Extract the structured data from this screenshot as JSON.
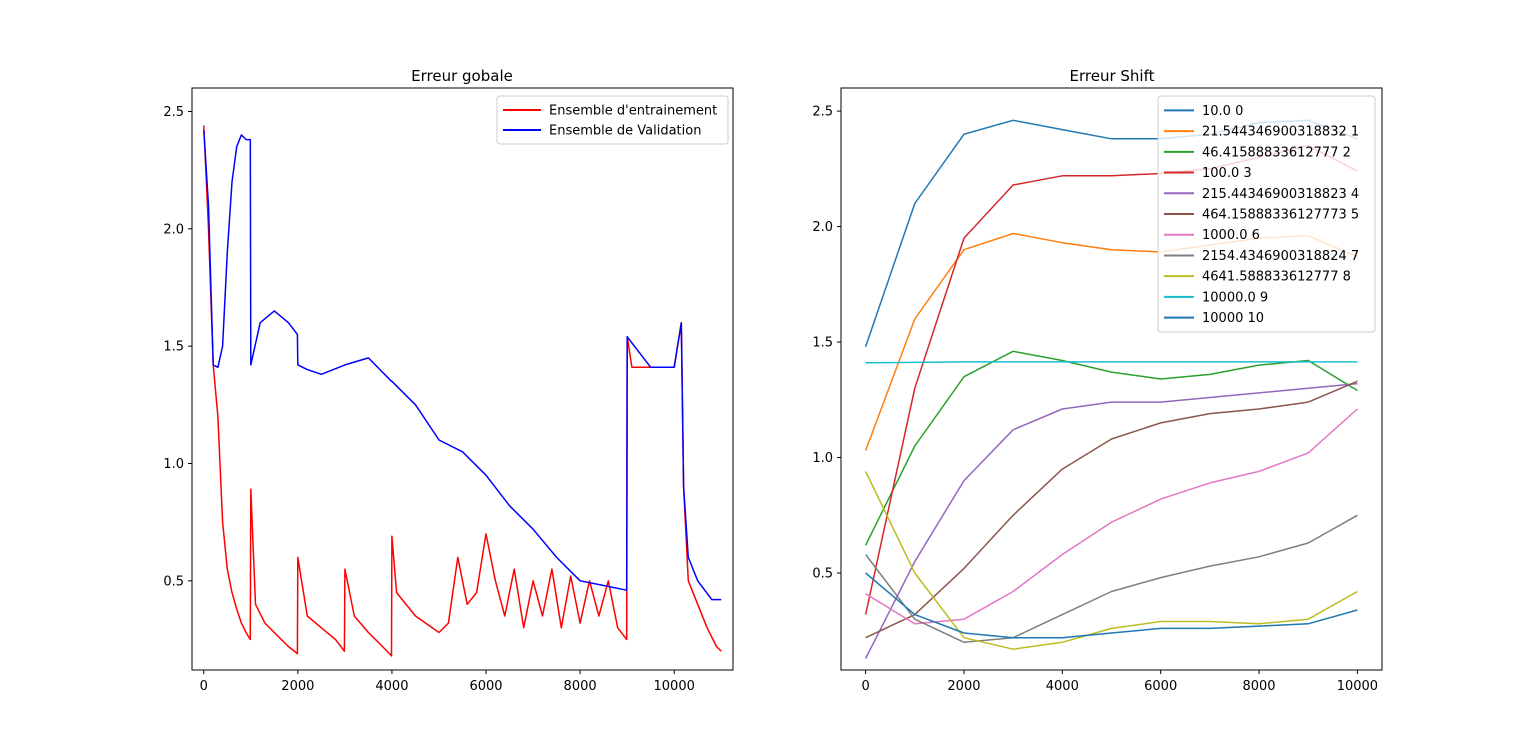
{
  "chart_data": [
    {
      "type": "line",
      "title": "Erreur gobale",
      "xlabel": "",
      "ylabel": "",
      "xlim": [
        -250,
        11250
      ],
      "ylim": [
        0.12,
        2.6
      ],
      "xticks": [
        0,
        2000,
        4000,
        6000,
        8000,
        10000
      ],
      "yticks": [
        0.5,
        1.0,
        1.5,
        2.0,
        2.5
      ],
      "xtick_labels": [
        "0",
        "2000",
        "4000",
        "6000",
        "8000",
        "10000"
      ],
      "ytick_labels": [
        "0.5",
        "1.0",
        "1.5",
        "2.0",
        "2.5"
      ],
      "grid": false,
      "legend_position": "top-right",
      "series": [
        {
          "name": "Ensemble d'entrainement",
          "color": "#ff0000",
          "x": [
            0,
            100,
            200,
            300,
            400,
            500,
            600,
            700,
            800,
            900,
            990,
            1000,
            1100,
            1300,
            1500,
            1800,
            1990,
            2000,
            2200,
            2500,
            2800,
            2990,
            3000,
            3200,
            3500,
            3800,
            3990,
            4000,
            4100,
            4500,
            5000,
            5200,
            5400,
            5600,
            5800,
            6000,
            6200,
            6400,
            6600,
            6800,
            7000,
            7200,
            7400,
            7600,
            7800,
            8000,
            8200,
            8400,
            8600,
            8800,
            8990,
            9000,
            9100,
            9500,
            10000,
            10150,
            10200,
            10300,
            10500,
            10700,
            10900,
            11000
          ],
          "y": [
            2.44,
            2.0,
            1.42,
            1.2,
            0.75,
            0.55,
            0.45,
            0.38,
            0.32,
            0.28,
            0.25,
            0.89,
            0.4,
            0.32,
            0.28,
            0.22,
            0.19,
            0.6,
            0.35,
            0.3,
            0.25,
            0.2,
            0.55,
            0.35,
            0.28,
            0.22,
            0.18,
            0.69,
            0.45,
            0.35,
            0.28,
            0.32,
            0.6,
            0.4,
            0.45,
            0.7,
            0.5,
            0.35,
            0.55,
            0.3,
            0.5,
            0.35,
            0.55,
            0.3,
            0.52,
            0.32,
            0.5,
            0.35,
            0.5,
            0.3,
            0.25,
            1.54,
            1.41,
            1.41,
            1.41,
            1.6,
            0.9,
            0.5,
            0.4,
            0.3,
            0.22,
            0.2
          ]
        },
        {
          "name": "Ensemble de Validation",
          "color": "#0000ff",
          "x": [
            0,
            100,
            200,
            300,
            400,
            500,
            600,
            700,
            800,
            900,
            990,
            1000,
            1200,
            1500,
            1800,
            1990,
            2000,
            2200,
            2500,
            3000,
            3500,
            3990,
            4000,
            4500,
            5000,
            5500,
            6000,
            6500,
            7000,
            7500,
            8000,
            8500,
            8990,
            9000,
            9500,
            10000,
            10150,
            10200,
            10300,
            10500,
            10800,
            11000
          ],
          "y": [
            2.42,
            2.1,
            1.42,
            1.41,
            1.5,
            1.9,
            2.2,
            2.35,
            2.4,
            2.38,
            2.38,
            1.42,
            1.6,
            1.65,
            1.6,
            1.55,
            1.42,
            1.4,
            1.38,
            1.42,
            1.45,
            1.35,
            1.35,
            1.25,
            1.1,
            1.05,
            0.95,
            0.82,
            0.72,
            0.6,
            0.5,
            0.48,
            0.46,
            1.54,
            1.41,
            1.41,
            1.6,
            0.9,
            0.6,
            0.5,
            0.42,
            0.42
          ]
        }
      ]
    },
    {
      "type": "line",
      "title": "Erreur Shift",
      "xlabel": "",
      "ylabel": "",
      "xlim": [
        -500,
        10500
      ],
      "ylim": [
        0.08,
        2.6
      ],
      "xticks": [
        0,
        2000,
        4000,
        6000,
        8000,
        10000
      ],
      "yticks": [
        0.5,
        1.0,
        1.5,
        2.0,
        2.5
      ],
      "xtick_labels": [
        "0",
        "2000",
        "4000",
        "6000",
        "8000",
        "10000"
      ],
      "ytick_labels": [
        "0.5",
        "1.0",
        "1.5",
        "2.0",
        "2.5"
      ],
      "grid": false,
      "legend_position": "top-right",
      "x": [
        0,
        1000,
        2000,
        3000,
        4000,
        5000,
        6000,
        7000,
        8000,
        9000,
        10000
      ],
      "series": [
        {
          "name": "10.0 0",
          "color": "#1f77b4",
          "values": [
            1.48,
            2.1,
            2.4,
            2.46,
            2.42,
            2.38,
            2.38,
            2.4,
            2.45,
            2.46,
            2.38
          ]
        },
        {
          "name": "21.544346900318832 1",
          "color": "#ff7f0e",
          "values": [
            1.03,
            1.6,
            1.9,
            1.97,
            1.93,
            1.9,
            1.89,
            1.92,
            1.95,
            1.96,
            1.87
          ]
        },
        {
          "name": "46.41588833612777 2",
          "color": "#2ca02c",
          "values": [
            0.62,
            1.05,
            1.35,
            1.46,
            1.42,
            1.37,
            1.34,
            1.36,
            1.4,
            1.42,
            1.29
          ]
        },
        {
          "name": "100.0 3",
          "color": "#d62728",
          "values": [
            0.32,
            1.3,
            1.95,
            2.18,
            2.22,
            2.22,
            2.23,
            2.25,
            2.3,
            2.35,
            2.24
          ]
        },
        {
          "name": "215.44346900318823 4",
          "color": "#9467bd",
          "values": [
            0.13,
            0.55,
            0.9,
            1.12,
            1.21,
            1.24,
            1.24,
            1.26,
            1.28,
            1.3,
            1.32
          ]
        },
        {
          "name": "464.15888336127773 5",
          "color": "#8c564b",
          "values": [
            0.22,
            0.32,
            0.52,
            0.75,
            0.95,
            1.08,
            1.15,
            1.19,
            1.21,
            1.24,
            1.33
          ]
        },
        {
          "name": "1000.0 6",
          "color": "#e377c2",
          "values": [
            0.41,
            0.28,
            0.3,
            0.42,
            0.58,
            0.72,
            0.82,
            0.89,
            0.94,
            1.02,
            1.21
          ]
        },
        {
          "name": "2154.4346900318824 7",
          "color": "#7f7f7f",
          "values": [
            0.58,
            0.3,
            0.2,
            0.22,
            0.32,
            0.42,
            0.48,
            0.53,
            0.57,
            0.63,
            0.75
          ]
        },
        {
          "name": "4641.588833612777 8",
          "color": "#bcbd22",
          "values": [
            0.94,
            0.5,
            0.22,
            0.17,
            0.2,
            0.26,
            0.29,
            0.29,
            0.28,
            0.3,
            0.42
          ]
        },
        {
          "name": "10000.0 9",
          "color": "#17becf",
          "values": [
            1.41,
            1.412,
            1.414,
            1.414,
            1.414,
            1.414,
            1.414,
            1.414,
            1.414,
            1.414,
            1.414
          ]
        },
        {
          "name": "10000 10",
          "color": "#1f77b4",
          "values": [
            0.5,
            0.32,
            0.24,
            0.22,
            0.22,
            0.24,
            0.26,
            0.26,
            0.27,
            0.28,
            0.34
          ]
        }
      ]
    }
  ]
}
